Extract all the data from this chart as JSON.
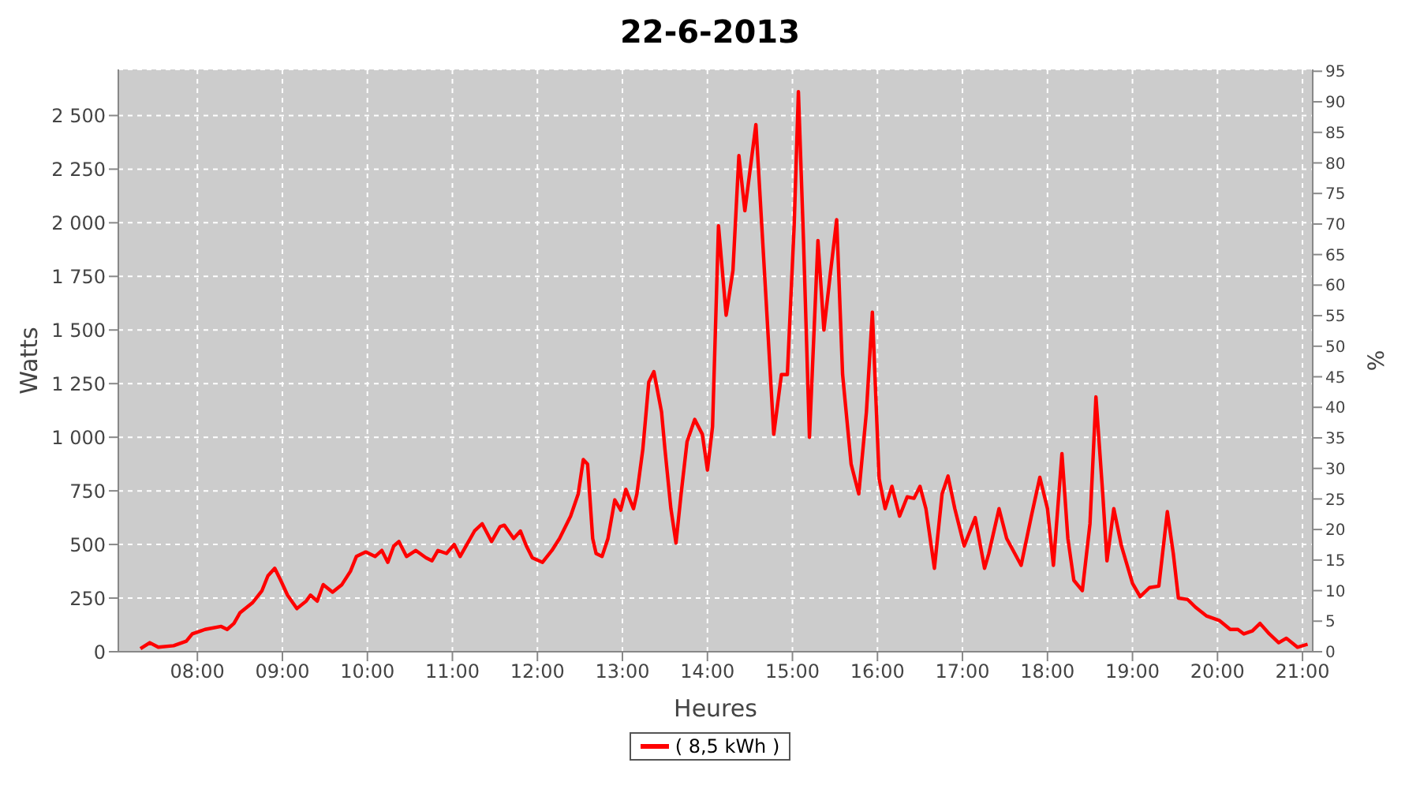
{
  "chart_data": {
    "type": "line",
    "title": "22-6-2013",
    "xlabel": "Heures",
    "ylabel": "Watts",
    "y2label": "%",
    "xlim": [
      7.07,
      21.12
    ],
    "xticks": [
      {
        "value": 8,
        "label": "08:00"
      },
      {
        "value": 9,
        "label": "09:00"
      },
      {
        "value": 10,
        "label": "10:00"
      },
      {
        "value": 11,
        "label": "11:00"
      },
      {
        "value": 12,
        "label": "12:00"
      },
      {
        "value": 13,
        "label": "13:00"
      },
      {
        "value": 14,
        "label": "14:00"
      },
      {
        "value": 15,
        "label": "15:00"
      },
      {
        "value": 16,
        "label": "16:00"
      },
      {
        "value": 17,
        "label": "17:00"
      },
      {
        "value": 18,
        "label": "18:00"
      },
      {
        "value": 19,
        "label": "19:00"
      },
      {
        "value": 20,
        "label": "20:00"
      },
      {
        "value": 21,
        "label": "21:00"
      }
    ],
    "ylim": [
      0,
      2715
    ],
    "yticks": [
      0,
      250,
      500,
      750,
      {
        "value": 1000,
        "label": "1 000"
      },
      {
        "value": 1250,
        "label": "1 250"
      },
      {
        "value": 1500,
        "label": "1 500"
      },
      {
        "value": 1750,
        "label": "1 750"
      },
      {
        "value": 2000,
        "label": "2 000"
      },
      {
        "value": 2250,
        "label": "2 250"
      },
      {
        "value": 2500,
        "label": "2 500"
      }
    ],
    "y2lim": [
      0,
      95.3
    ],
    "y2ticks": [
      0,
      5,
      10,
      15,
      20,
      25,
      30,
      35,
      40,
      45,
      50,
      55,
      60,
      65,
      70,
      75,
      80,
      85,
      90,
      95
    ],
    "grid": true,
    "legend": "bottom",
    "marker": "none",
    "line_style": "solid",
    "x": [
      7.33,
      7.44,
      7.54,
      7.72,
      7.87,
      7.94,
      8.09,
      8.28,
      8.35,
      8.43,
      8.5,
      8.65,
      8.76,
      8.83,
      8.91,
      8.98,
      9.06,
      9.17,
      9.28,
      9.33,
      9.41,
      9.48,
      9.59,
      9.7,
      9.8,
      9.87,
      9.98,
      10.09,
      10.17,
      10.24,
      10.31,
      10.37,
      10.46,
      10.57,
      10.69,
      10.76,
      10.83,
      10.93,
      11.02,
      11.09,
      11.17,
      11.26,
      11.35,
      11.46,
      11.56,
      11.61,
      11.72,
      11.8,
      11.87,
      11.94,
      12.06,
      12.17,
      12.26,
      12.39,
      12.48,
      12.54,
      12.59,
      12.65,
      12.69,
      12.76,
      12.83,
      12.91,
      12.98,
      13.04,
      13.13,
      13.17,
      13.24,
      13.31,
      13.37,
      13.46,
      13.5,
      13.57,
      13.63,
      13.69,
      13.76,
      13.85,
      13.94,
      14.0,
      14.06,
      14.13,
      14.22,
      14.3,
      14.37,
      14.44,
      14.57,
      14.69,
      14.78,
      14.87,
      14.94,
      15.02,
      15.07,
      15.13,
      15.2,
      15.3,
      15.37,
      15.44,
      15.52,
      15.59,
      15.69,
      15.78,
      15.87,
      15.94,
      16.02,
      16.09,
      16.17,
      16.26,
      16.35,
      16.43,
      16.5,
      16.57,
      16.67,
      16.76,
      16.83,
      16.91,
      17.02,
      17.15,
      17.26,
      17.31,
      17.43,
      17.52,
      17.69,
      17.81,
      17.91,
      18.0,
      18.07,
      18.17,
      18.24,
      18.31,
      18.41,
      18.5,
      18.57,
      18.65,
      18.7,
      18.78,
      18.87,
      19.0,
      19.09,
      19.2,
      19.31,
      19.41,
      19.48,
      19.54,
      19.65,
      19.74,
      19.87,
      20.02,
      20.15,
      20.24,
      20.31,
      20.41,
      20.5,
      20.61,
      20.72,
      20.81,
      20.94,
      21.06
    ],
    "series": [
      {
        "name": "( 8,5 kWh )",
        "color": "#ff0000",
        "values": [
          14,
          42,
          21,
          28,
          49,
          83,
          104,
          118,
          104,
          132,
          181,
          229,
          285,
          354,
          389,
          333,
          264,
          201,
          236,
          264,
          236,
          313,
          278,
          313,
          375,
          444,
          465,
          444,
          472,
          417,
          493,
          514,
          444,
          472,
          438,
          424,
          472,
          458,
          500,
          444,
          500,
          563,
          597,
          514,
          583,
          590,
          528,
          563,
          493,
          438,
          417,
          472,
          528,
          632,
          736,
          896,
          875,
          528,
          458,
          444,
          528,
          708,
          660,
          757,
          667,
          736,
          944,
          1257,
          1306,
          1118,
          944,
          667,
          507,
          736,
          979,
          1083,
          1014,
          847,
          1049,
          1986,
          1569,
          1778,
          2313,
          2056,
          2458,
          1639,
          1014,
          1292,
          1292,
          1986,
          2611,
          1917,
          1000,
          1917,
          1500,
          1743,
          2014,
          1292,
          875,
          736,
          1118,
          1583,
          806,
          667,
          771,
          632,
          722,
          715,
          771,
          667,
          389,
          736,
          819,
          667,
          493,
          625,
          389,
          458,
          667,
          528,
          403,
          632,
          813,
          667,
          403,
          924,
          528,
          333,
          285,
          597,
          1188,
          736,
          424,
          667,
          493,
          319,
          257,
          299,
          306,
          653,
          458,
          250,
          243,
          208,
          167,
          146,
          104,
          104,
          83,
          97,
          132,
          83,
          42,
          63,
          21,
          35
        ]
      }
    ]
  }
}
